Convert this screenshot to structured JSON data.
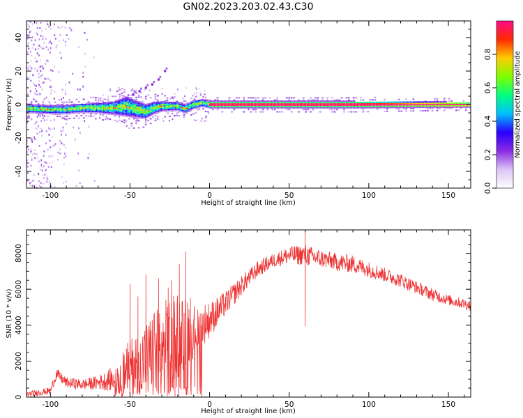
{
  "figure": {
    "title": "GN02.2023.203.02.43.C30"
  },
  "chart_data": [
    {
      "type": "heatmap",
      "xlabel": "Height of straight line (km)",
      "ylabel": "Frequency (Hz)",
      "xlim": [
        -115,
        164
      ],
      "ylim": [
        -50,
        50
      ],
      "x_ticks": [
        -100,
        -50,
        0,
        50,
        100,
        150
      ],
      "y_ticks": [
        -40,
        -20,
        0,
        20,
        40
      ],
      "colorbar": {
        "label": "Normalized spectral amplitude",
        "range": [
          0,
          1
        ],
        "ticks": [
          0.0,
          0.2,
          0.4,
          0.6,
          0.8
        ],
        "colormap": [
          "#ffffff",
          "#dcc4f5",
          "#8a2be2",
          "#2a00ff",
          "#00bfff",
          "#00ff7f",
          "#7fff00",
          "#ffcc00",
          "#ff2a00",
          "#ff0a8a"
        ]
      },
      "band_center_hz": [
        [
          -112,
          -2.5
        ],
        [
          -100,
          -3
        ],
        [
          -90,
          -3
        ],
        [
          -80,
          -2
        ],
        [
          -70,
          -2
        ],
        [
          -60,
          -2
        ],
        [
          -52,
          -1
        ],
        [
          -45,
          -3
        ],
        [
          -40,
          -4
        ],
        [
          -35,
          -2
        ],
        [
          -30,
          -1
        ],
        [
          -25,
          -1
        ],
        [
          -20,
          -1
        ],
        [
          -15,
          -2.5
        ],
        [
          -10,
          0
        ],
        [
          -5,
          1
        ],
        [
          0,
          0
        ],
        [
          164,
          0
        ]
      ],
      "band_halfwidth_hz": [
        [
          -112,
          2.5
        ],
        [
          -90,
          2.5
        ],
        [
          -70,
          3
        ],
        [
          -60,
          4
        ],
        [
          -52,
          6
        ],
        [
          -45,
          5
        ],
        [
          -38,
          4
        ],
        [
          -30,
          3
        ],
        [
          -20,
          2.5
        ],
        [
          -10,
          2.5
        ],
        [
          0,
          2
        ],
        [
          92,
          2
        ],
        [
          164,
          1.5
        ]
      ],
      "spur_points": [
        [
          -28,
          20
        ],
        [
          -32,
          15
        ],
        [
          -36,
          12
        ],
        [
          -40,
          10
        ],
        [
          -44,
          8
        ],
        [
          -48,
          6
        ],
        [
          -52,
          4
        ]
      ]
    },
    {
      "type": "line",
      "xlabel": "Height of straight line (km)",
      "ylabel": "SNR (10 * v/v)",
      "xlim": [
        -115,
        164
      ],
      "ylim": [
        0,
        9300
      ],
      "x_ticks": [
        -100,
        -50,
        0,
        50,
        100,
        150
      ],
      "y_ticks": [
        0,
        2000,
        4000,
        6000,
        8000
      ],
      "line_color": "#ee3333",
      "envelope": {
        "x": [
          -115,
          -100,
          -96,
          -90,
          -80,
          -70,
          -60,
          -50,
          -40,
          -30,
          -20,
          -10,
          0,
          10,
          20,
          30,
          40,
          50,
          60,
          70,
          80,
          90,
          100,
          110,
          120,
          130,
          140,
          150,
          164
        ],
        "mean": [
          150,
          350,
          1300,
          800,
          700,
          800,
          1000,
          1800,
          2200,
          2800,
          3500,
          3700,
          4300,
          5200,
          6200,
          7100,
          7600,
          7900,
          7900,
          7700,
          7500,
          7400,
          7100,
          6800,
          6500,
          6100,
          5700,
          5400,
          5100
        ],
        "amp": [
          150,
          200,
          300,
          300,
          300,
          400,
          700,
          1500,
          2000,
          2500,
          2500,
          1500,
          1000,
          700,
          550,
          450,
          400,
          500,
          600,
          500,
          500,
          500,
          450,
          400,
          400,
          350,
          350,
          300,
          300
        ]
      },
      "peaks": [
        [
          -50,
          6300
        ],
        [
          -45,
          5600
        ],
        [
          -40,
          6800
        ],
        [
          -32,
          6600
        ],
        [
          -26,
          6100
        ],
        [
          -24,
          6500
        ],
        [
          -19,
          7400
        ],
        [
          -15,
          8100
        ],
        [
          -12,
          5500
        ],
        [
          60,
          9300
        ]
      ]
    }
  ]
}
